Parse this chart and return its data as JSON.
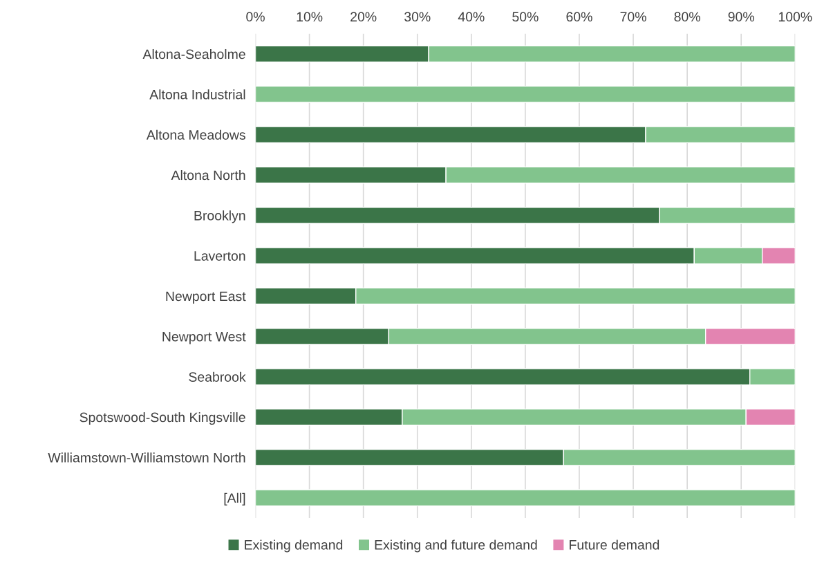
{
  "chart_data": {
    "type": "bar",
    "orientation": "horizontal",
    "stacked": true,
    "categories": [
      "Altona-Seaholme",
      "Altona Industrial",
      "Altona Meadows",
      "Altona North",
      "Brooklyn",
      "Laverton",
      "Newport East",
      "Newport West",
      "Seabrook",
      "Spotswood-South Kingsville",
      "Williamstown-Williamstown North",
      "[All]"
    ],
    "series": [
      {
        "name": "Existing demand",
        "color": "#3b7548",
        "values": [
          32.1,
          null,
          72.3,
          35.3,
          74.9,
          81.3,
          18.6,
          24.7,
          91.6,
          27.2,
          57.1,
          null
        ]
      },
      {
        "name": "Existing and future demand",
        "color": "#82c48d",
        "values": [
          67.9,
          100,
          27.7,
          64.7,
          25.1,
          12.6,
          81.4,
          58.7,
          8.4,
          63.7,
          42.9,
          100
        ]
      },
      {
        "name": "Future demand",
        "color": "#e384b1",
        "values": [
          null,
          null,
          null,
          null,
          null,
          6.1,
          null,
          16.6,
          null,
          9.1,
          null,
          null
        ]
      }
    ],
    "xlim": [
      0,
      100
    ],
    "xticks": [
      {
        "value": 0,
        "label": "0%"
      },
      {
        "value": 10,
        "label": "10%"
      },
      {
        "value": 20,
        "label": "20%"
      },
      {
        "value": 30,
        "label": "30%"
      },
      {
        "value": 40,
        "label": "40%"
      },
      {
        "value": 50,
        "label": "50%"
      },
      {
        "value": 60,
        "label": "60%"
      },
      {
        "value": 70,
        "label": "70%"
      },
      {
        "value": 80,
        "label": "80%"
      },
      {
        "value": 90,
        "label": "90%"
      },
      {
        "value": 100,
        "label": "100%"
      }
    ],
    "grid": "x",
    "legend": "bottom"
  }
}
